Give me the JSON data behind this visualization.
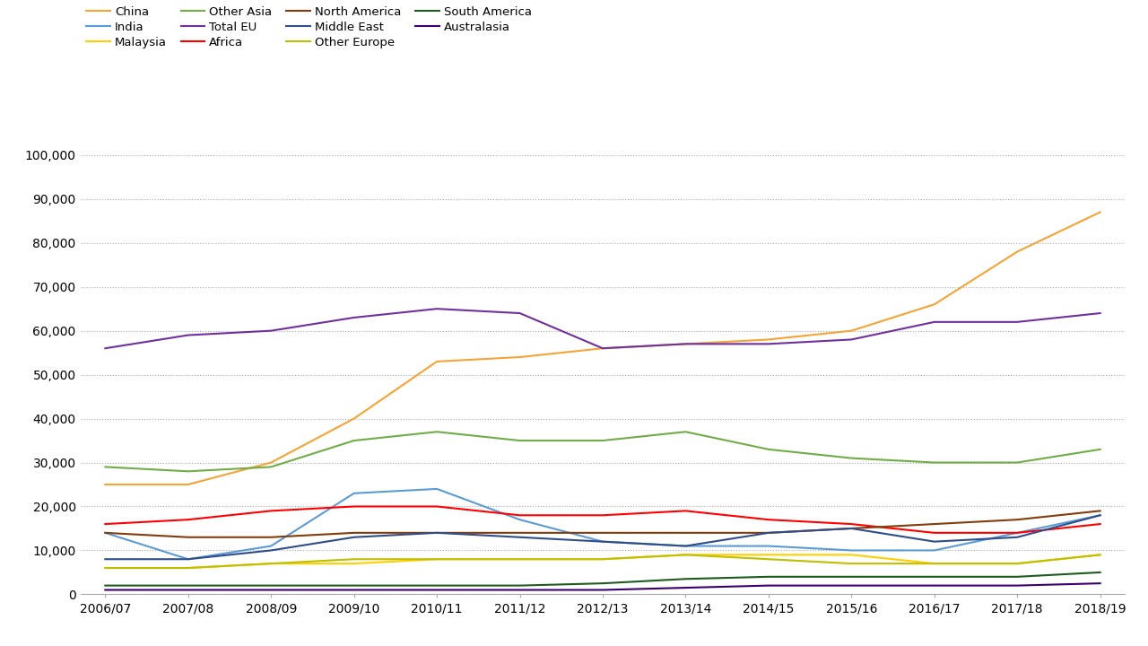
{
  "years": [
    "2006/07",
    "2007/08",
    "2008/09",
    "2009/10",
    "2010/11",
    "2011/12",
    "2012/13",
    "2013/14",
    "2014/15",
    "2015/16",
    "2016/17",
    "2017/18",
    "2018/19"
  ],
  "series": [
    {
      "label": "China",
      "color": "#F4A436",
      "values": [
        25000,
        25000,
        30000,
        40000,
        53000,
        54000,
        56000,
        57000,
        58000,
        60000,
        66000,
        78000,
        87000
      ]
    },
    {
      "label": "India",
      "color": "#5B9BD5",
      "values": [
        14000,
        8000,
        11000,
        23000,
        24000,
        17000,
        12000,
        11000,
        11000,
        10000,
        10000,
        14000,
        18000
      ]
    },
    {
      "label": "Malaysia",
      "color": "#FFCF00",
      "values": [
        6000,
        6000,
        7000,
        7000,
        8000,
        8000,
        8000,
        9000,
        9000,
        9000,
        7000,
        7000,
        9000
      ]
    },
    {
      "label": "Other Asia",
      "color": "#70AD47",
      "values": [
        29000,
        28000,
        29000,
        35000,
        37000,
        35000,
        35000,
        37000,
        33000,
        31000,
        30000,
        30000,
        33000
      ]
    },
    {
      "label": "Total EU",
      "color": "#7030A0",
      "values": [
        56000,
        59000,
        60000,
        63000,
        65000,
        64000,
        56000,
        57000,
        57000,
        58000,
        62000,
        62000,
        64000
      ]
    },
    {
      "label": "Africa",
      "color": "#FF0000",
      "values": [
        16000,
        17000,
        19000,
        20000,
        20000,
        18000,
        18000,
        19000,
        17000,
        16000,
        14000,
        14000,
        16000
      ]
    },
    {
      "label": "North America",
      "color": "#843C0C",
      "values": [
        14000,
        13000,
        13000,
        14000,
        14000,
        14000,
        14000,
        14000,
        14000,
        15000,
        16000,
        17000,
        19000
      ]
    },
    {
      "label": "Middle East",
      "color": "#2E4D8A",
      "values": [
        8000,
        8000,
        10000,
        13000,
        14000,
        13000,
        12000,
        11000,
        14000,
        15000,
        12000,
        13000,
        18000
      ]
    },
    {
      "label": "Other Europe",
      "color": "#BFBF00",
      "values": [
        6000,
        6000,
        7000,
        8000,
        8000,
        8000,
        8000,
        9000,
        8000,
        7000,
        7000,
        7000,
        9000
      ]
    },
    {
      "label": "South America",
      "color": "#1E5C1E",
      "values": [
        2000,
        2000,
        2000,
        2000,
        2000,
        2000,
        2500,
        3500,
        4000,
        4000,
        4000,
        4000,
        5000
      ]
    },
    {
      "label": "Australasia",
      "color": "#3A006F",
      "values": [
        1000,
        1000,
        1000,
        1000,
        1000,
        1000,
        1000,
        1500,
        2000,
        2000,
        2000,
        2000,
        2500
      ]
    }
  ],
  "ylim": [
    0,
    100000
  ],
  "yticks": [
    0,
    10000,
    20000,
    30000,
    40000,
    50000,
    60000,
    70000,
    80000,
    90000,
    100000
  ],
  "ytick_labels": [
    "0",
    "10,000",
    "20,000",
    "30,000",
    "40,000",
    "50,000",
    "60,000",
    "70,000",
    "80,000",
    "90,000",
    "100,000"
  ],
  "background_color": "#FFFFFF",
  "grid_color": "#AAAAAA",
  "linewidth": 1.5
}
